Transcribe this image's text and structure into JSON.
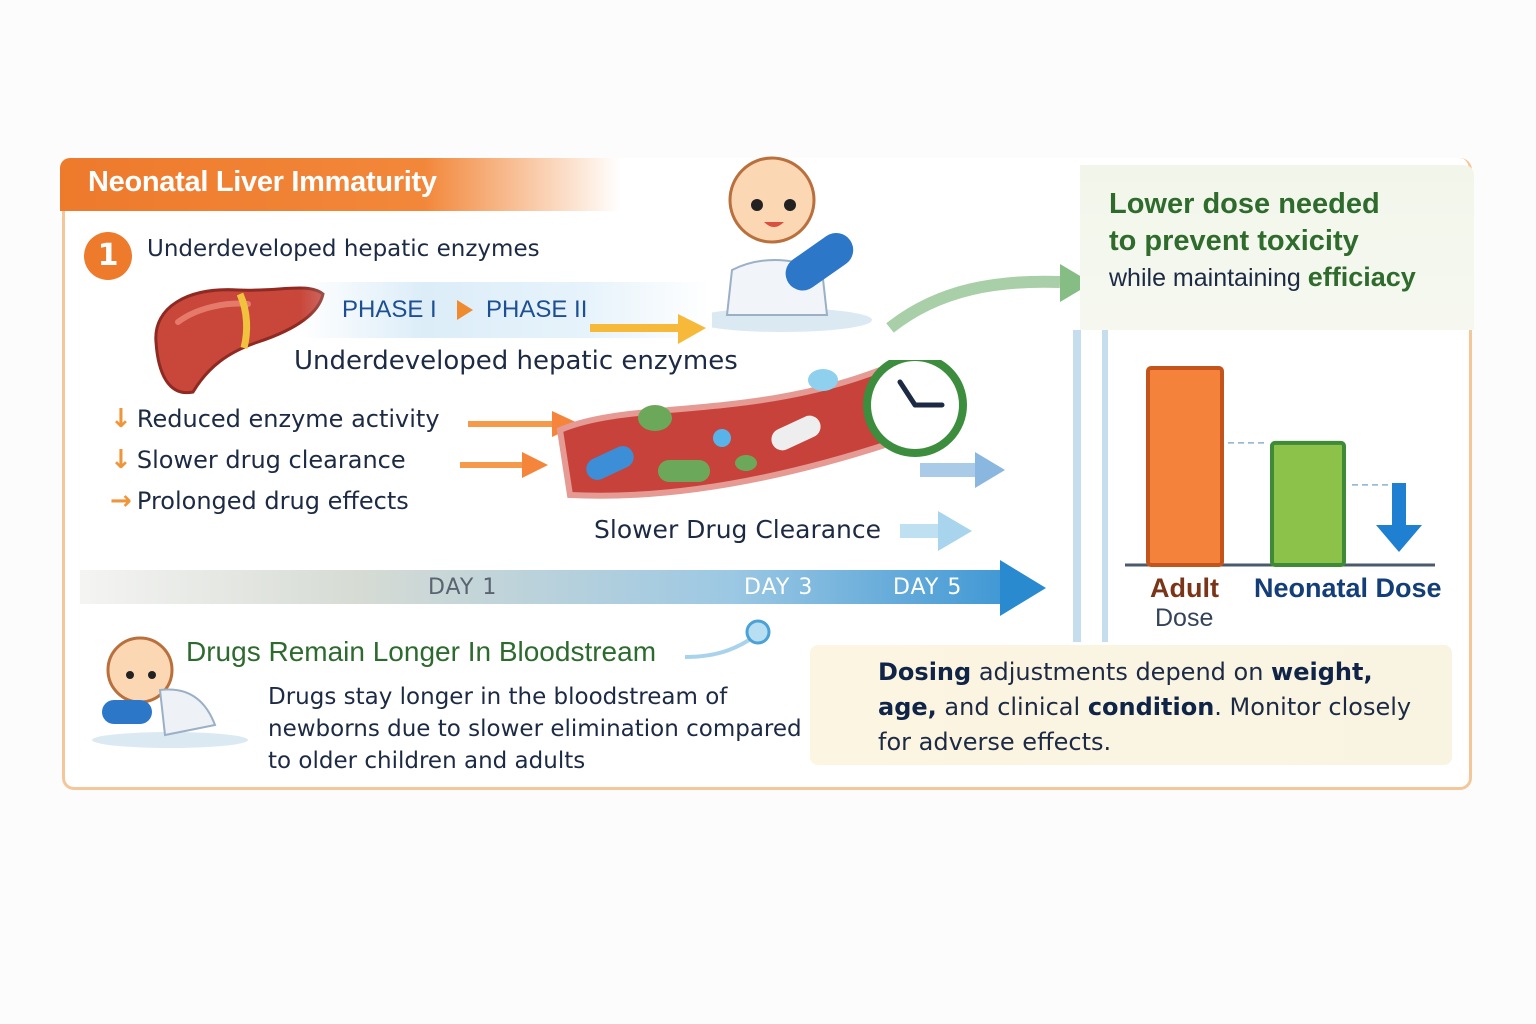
{
  "header": {
    "title": "Neonatal Liver Immaturity"
  },
  "step": {
    "number": "1",
    "label": "Underdeveloped hepatic enzymes"
  },
  "phases": {
    "phase1": "PHASE I",
    "phase2": "PHASE II",
    "caption": "Underdeveloped hepatic enzymes"
  },
  "effects": [
    {
      "icon": "arrow-down-icon",
      "label": "Reduced enzyme activity"
    },
    {
      "icon": "arrow-down-icon",
      "label": "Slower drug clearance"
    },
    {
      "icon": "arrow-right-icon",
      "label": "Prolonged drug effects"
    }
  ],
  "vessel": {
    "caption": "Slower Drug Clearance"
  },
  "timeline": {
    "days": [
      "DAY 1",
      "DAY 3",
      "DAY 5"
    ]
  },
  "bloodstream": {
    "title": "Drugs Remain Longer In Bloodstream",
    "description": "Drugs stay longer in the bloodstream of newborns due to slower elimination compared to older children and adults"
  },
  "dose_message": {
    "line1": "Lower dose needed",
    "line2": "to prevent toxicity",
    "line3_prefix": "while maintaining ",
    "line3_emphasis": "efficiacy"
  },
  "dose_comparison": {
    "bars": [
      {
        "label_bold": "Adult",
        "label_sub": "Dose",
        "relative_level": 1.0,
        "color": "#f5823a"
      },
      {
        "label_bold": "Neonatal Dose",
        "label_sub": "",
        "relative_level": 0.62,
        "color": "#8cc24a"
      }
    ],
    "decrease_arrow_color": "#1f7fd0"
  },
  "note": {
    "w1": "Dosing",
    "t1": " adjustments depend on ",
    "w2": "weight, age,",
    "t2": " and clinical ",
    "w3": "condition",
    "t3": ". Monitor closely for adverse effects."
  },
  "colors": {
    "orange": "#ee7a2c",
    "green": "#2f6b2d",
    "blue": "#1d4f93",
    "note_bg": "#fbf5e1"
  }
}
